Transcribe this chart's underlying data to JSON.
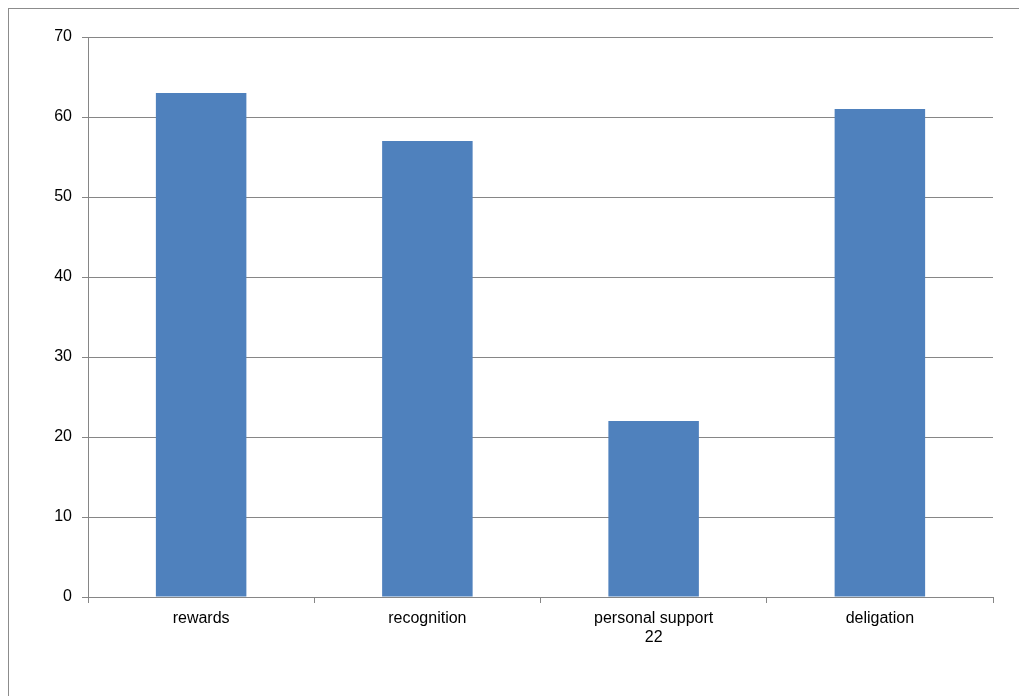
{
  "chart_data": {
    "type": "bar",
    "categories": [
      "rewards",
      "recognition",
      "personal support 22",
      "deligation"
    ],
    "values": [
      63,
      57,
      22,
      61
    ],
    "color": "#4f81bd",
    "ylim": [
      0,
      70
    ],
    "yticks": [
      0,
      10,
      20,
      30,
      40,
      50,
      60,
      70
    ],
    "grid": "y"
  }
}
